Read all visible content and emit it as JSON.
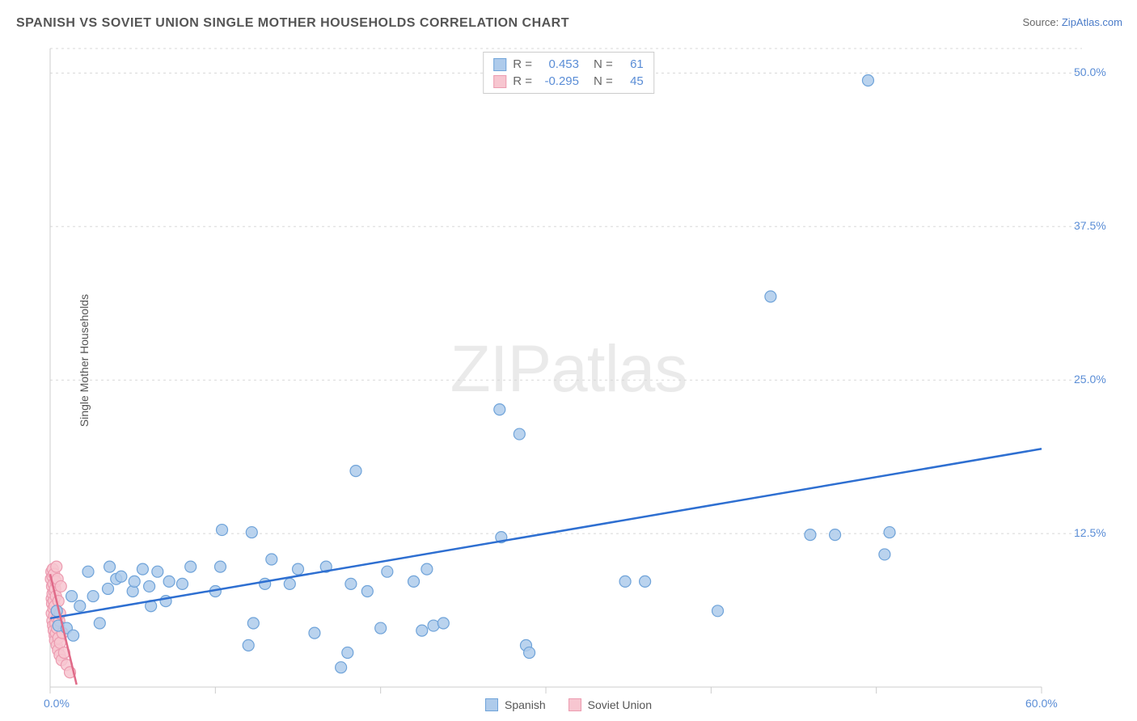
{
  "title": "SPANISH VS SOVIET UNION SINGLE MOTHER HOUSEHOLDS CORRELATION CHART",
  "source_prefix": "Source: ",
  "source_link": "ZipAtlas.com",
  "y_axis_label": "Single Mother Households",
  "watermark_bold": "ZIP",
  "watermark_light": "atlas",
  "chart": {
    "type": "scatter",
    "xlim": [
      0,
      60
    ],
    "ylim": [
      0,
      52
    ],
    "x_ticks": [
      0,
      10,
      20,
      30,
      40,
      50,
      60
    ],
    "x_tick_labels": [
      "0.0%",
      "",
      "",
      "",
      "",
      "",
      "60.0%"
    ],
    "y_ticks": [
      12.5,
      25.0,
      37.5,
      50.0
    ],
    "y_tick_labels": [
      "12.5%",
      "25.0%",
      "37.5%",
      "50.0%"
    ],
    "grid_color": "#d8d8d8",
    "grid_dash": "3,4",
    "axis_color": "#cccccc",
    "background_color": "#ffffff",
    "marker_radius": 7,
    "marker_stroke_width": 1.2,
    "line_width": 2.5,
    "series": [
      {
        "name": "Spanish",
        "color_fill": "#aecbeb",
        "color_stroke": "#6fa3d9",
        "line_color": "#2e6fd1",
        "points": [
          [
            0.4,
            6.2
          ],
          [
            0.5,
            5.0
          ],
          [
            1.0,
            4.8
          ],
          [
            1.3,
            7.4
          ],
          [
            1.4,
            4.2
          ],
          [
            1.8,
            6.6
          ],
          [
            2.3,
            9.4
          ],
          [
            2.6,
            7.4
          ],
          [
            3.0,
            5.2
          ],
          [
            3.5,
            8.0
          ],
          [
            3.6,
            9.8
          ],
          [
            4.0,
            8.8
          ],
          [
            4.3,
            9.0
          ],
          [
            5.0,
            7.8
          ],
          [
            5.1,
            8.6
          ],
          [
            5.6,
            9.6
          ],
          [
            6.0,
            8.2
          ],
          [
            6.1,
            6.6
          ],
          [
            6.5,
            9.4
          ],
          [
            7.0,
            7.0
          ],
          [
            7.2,
            8.6
          ],
          [
            8.0,
            8.4
          ],
          [
            8.5,
            9.8
          ],
          [
            10.0,
            7.8
          ],
          [
            10.3,
            9.8
          ],
          [
            10.4,
            12.8
          ],
          [
            12.0,
            3.4
          ],
          [
            12.2,
            12.6
          ],
          [
            12.3,
            5.2
          ],
          [
            13.0,
            8.4
          ],
          [
            13.4,
            10.4
          ],
          [
            14.5,
            8.4
          ],
          [
            15.0,
            9.6
          ],
          [
            16.0,
            4.4
          ],
          [
            16.7,
            9.8
          ],
          [
            17.6,
            1.6
          ],
          [
            18.0,
            2.8
          ],
          [
            18.2,
            8.4
          ],
          [
            18.5,
            17.6
          ],
          [
            19.2,
            7.8
          ],
          [
            20.0,
            4.8
          ],
          [
            20.4,
            9.4
          ],
          [
            22.0,
            8.6
          ],
          [
            22.5,
            4.6
          ],
          [
            22.8,
            9.6
          ],
          [
            23.2,
            5.0
          ],
          [
            23.8,
            5.2
          ],
          [
            27.2,
            22.6
          ],
          [
            27.3,
            12.2
          ],
          [
            28.4,
            20.6
          ],
          [
            28.8,
            3.4
          ],
          [
            29.0,
            2.8
          ],
          [
            34.8,
            8.6
          ],
          [
            36.0,
            8.6
          ],
          [
            40.4,
            6.2
          ],
          [
            43.6,
            31.8
          ],
          [
            46.0,
            12.4
          ],
          [
            47.5,
            12.4
          ],
          [
            49.5,
            49.4
          ],
          [
            50.5,
            10.8
          ],
          [
            50.8,
            12.6
          ]
        ],
        "trend": {
          "x1": 0,
          "y1": 5.6,
          "x2": 60,
          "y2": 19.4
        }
      },
      {
        "name": "Soviet Union",
        "color_fill": "#f7c6d0",
        "color_stroke": "#ec9bb0",
        "line_color": "#e06a88",
        "points": [
          [
            0.05,
            8.8
          ],
          [
            0.08,
            9.4
          ],
          [
            0.1,
            7.2
          ],
          [
            0.1,
            6.0
          ],
          [
            0.12,
            6.8
          ],
          [
            0.12,
            8.2
          ],
          [
            0.14,
            5.4
          ],
          [
            0.15,
            7.6
          ],
          [
            0.15,
            9.0
          ],
          [
            0.16,
            9.6
          ],
          [
            0.18,
            5.0
          ],
          [
            0.2,
            6.4
          ],
          [
            0.2,
            8.4
          ],
          [
            0.22,
            4.6
          ],
          [
            0.22,
            7.0
          ],
          [
            0.24,
            9.2
          ],
          [
            0.25,
            5.8
          ],
          [
            0.25,
            7.8
          ],
          [
            0.28,
            4.2
          ],
          [
            0.28,
            6.6
          ],
          [
            0.3,
            8.0
          ],
          [
            0.3,
            3.8
          ],
          [
            0.32,
            5.2
          ],
          [
            0.34,
            8.6
          ],
          [
            0.35,
            4.4
          ],
          [
            0.35,
            7.4
          ],
          [
            0.38,
            9.8
          ],
          [
            0.4,
            3.4
          ],
          [
            0.4,
            6.2
          ],
          [
            0.42,
            5.6
          ],
          [
            0.42,
            4.8
          ],
          [
            0.45,
            8.8
          ],
          [
            0.48,
            3.0
          ],
          [
            0.5,
            7.0
          ],
          [
            0.5,
            4.0
          ],
          [
            0.55,
            5.4
          ],
          [
            0.58,
            2.6
          ],
          [
            0.6,
            6.0
          ],
          [
            0.6,
            3.6
          ],
          [
            0.65,
            8.2
          ],
          [
            0.7,
            2.2
          ],
          [
            0.75,
            4.4
          ],
          [
            0.85,
            2.8
          ],
          [
            1.0,
            1.8
          ],
          [
            1.2,
            1.2
          ]
        ],
        "trend": {
          "x1": 0,
          "y1": 9.2,
          "x2": 1.6,
          "y2": 0.2
        }
      }
    ]
  },
  "stats": {
    "rows": [
      {
        "swatch_fill": "#aecbeb",
        "swatch_stroke": "#6fa3d9",
        "r_label": "R =",
        "r_val": "0.453",
        "n_label": "N =",
        "n_val": "61"
      },
      {
        "swatch_fill": "#f7c6d0",
        "swatch_stroke": "#ec9bb0",
        "r_label": "R =",
        "r_val": "-0.295",
        "n_label": "N =",
        "n_val": "45"
      }
    ]
  },
  "legend": [
    {
      "swatch_fill": "#aecbeb",
      "swatch_stroke": "#6fa3d9",
      "label": "Spanish"
    },
    {
      "swatch_fill": "#f7c6d0",
      "swatch_stroke": "#ec9bb0",
      "label": "Soviet Union"
    }
  ]
}
